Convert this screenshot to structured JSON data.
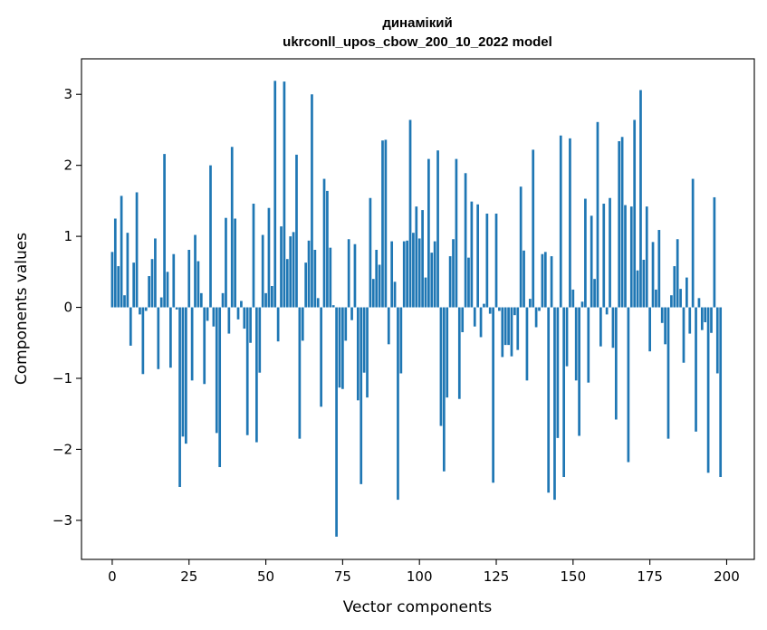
{
  "chart_data": {
    "type": "bar",
    "title_line1": "динамікий",
    "title_line2": "ukrconll_upos_cbow_200_10_2022 model",
    "xlabel": "Vector components",
    "ylabel": "Components values",
    "xlim": [
      -10,
      209
    ],
    "ylim": [
      -3.55,
      3.5
    ],
    "x_ticks": [
      0,
      25,
      50,
      75,
      100,
      125,
      150,
      175,
      200
    ],
    "x_tick_labels": [
      "0",
      "25",
      "50",
      "75",
      "100",
      "125",
      "150",
      "175",
      "200"
    ],
    "y_ticks": [
      -3,
      -2,
      -1,
      0,
      1,
      2,
      3
    ],
    "y_tick_labels": [
      "−3",
      "−2",
      "−1",
      "0",
      "1",
      "2",
      "3"
    ],
    "grid": false,
    "color": "#1f77b4",
    "values": [
      0.78,
      1.25,
      0.58,
      1.57,
      0.17,
      1.05,
      -0.54,
      0.63,
      1.62,
      -0.1,
      -0.94,
      -0.05,
      0.44,
      0.68,
      0.97,
      -0.87,
      0.14,
      2.16,
      0.5,
      -0.85,
      0.75,
      -0.03,
      -2.53,
      -1.82,
      -1.92,
      0.81,
      -1.03,
      1.02,
      0.65,
      0.2,
      -1.08,
      -0.19,
      2.0,
      -0.27,
      -1.77,
      -2.25,
      0.2,
      1.26,
      -0.37,
      2.26,
      1.25,
      -0.17,
      0.09,
      -0.3,
      -1.8,
      -0.5,
      1.46,
      -1.9,
      -0.92,
      1.02,
      0.2,
      1.4,
      0.3,
      3.19,
      -0.48,
      1.14,
      3.18,
      0.68,
      1.0,
      1.06,
      2.15,
      -1.85,
      -0.47,
      0.63,
      0.94,
      3.0,
      0.81,
      0.13,
      -1.4,
      1.81,
      1.64,
      0.84,
      0.03,
      -3.23,
      -1.13,
      -1.15,
      -0.47,
      0.96,
      -0.18,
      0.89,
      -1.31,
      -2.49,
      -0.92,
      -1.27,
      1.54,
      0.4,
      0.81,
      0.6,
      2.35,
      2.36,
      -0.52,
      0.93,
      0.36,
      -2.71,
      -0.93,
      0.93,
      0.94,
      2.64,
      1.05,
      1.42,
      0.97,
      1.37,
      0.42,
      2.09,
      0.77,
      0.93,
      2.21,
      -1.67,
      -2.31,
      -1.27,
      0.72,
      0.96,
      2.09,
      -1.29,
      -0.35,
      1.89,
      0.7,
      1.49,
      -0.27,
      1.45,
      -0.42,
      0.05,
      1.32,
      -0.09,
      -2.47,
      1.32,
      -0.05,
      -0.7,
      -0.53,
      -0.53,
      -0.69,
      -0.11,
      -0.6,
      1.7,
      0.8,
      -1.03,
      0.12,
      2.22,
      -0.28,
      -0.05,
      0.75,
      0.78,
      -2.61,
      0.72,
      -2.71,
      -1.84,
      2.42,
      -2.39,
      -0.83,
      2.38,
      0.25,
      -1.03,
      -1.81,
      0.08,
      1.53,
      -1.06,
      1.29,
      0.4,
      2.61,
      -0.55,
      1.46,
      -0.1,
      1.54,
      -0.57,
      -1.58,
      2.34,
      2.4,
      1.44,
      -2.18,
      1.42,
      2.64,
      0.52,
      3.06,
      0.67,
      1.42,
      -0.62,
      0.92,
      0.25,
      1.09,
      -0.22,
      -0.52,
      -1.85,
      0.17,
      0.58,
      0.96,
      0.26,
      -0.78,
      0.42,
      -0.37,
      1.81,
      -1.75,
      0.13,
      -0.32,
      -0.21,
      -2.33,
      -0.36,
      1.55,
      -0.93,
      -2.39
    ]
  }
}
